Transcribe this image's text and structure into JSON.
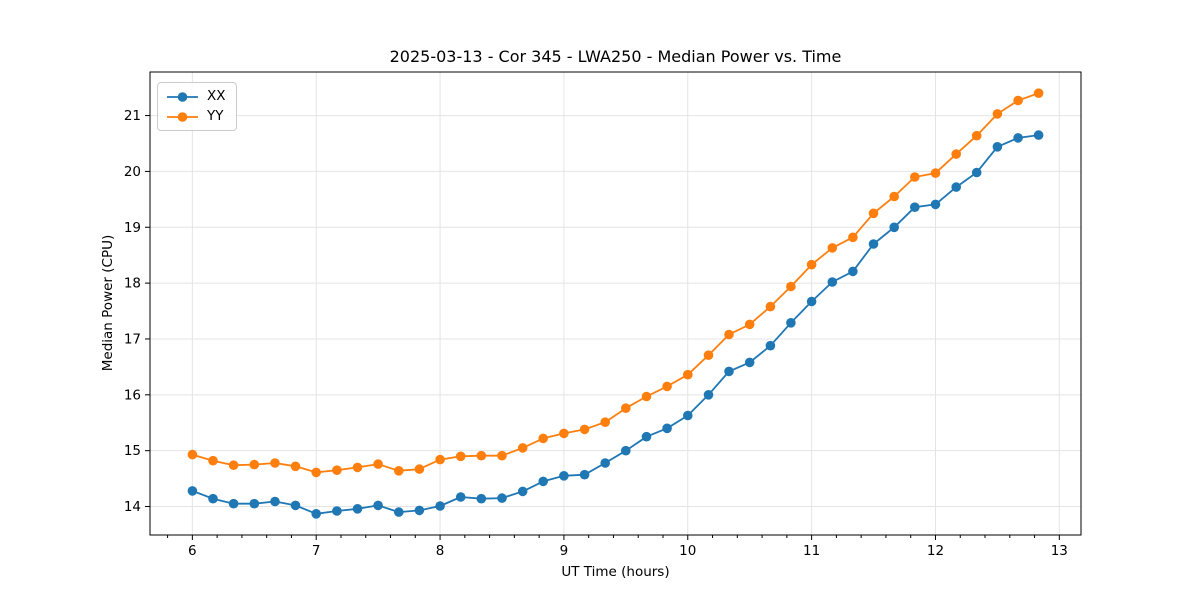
{
  "chart_data": {
    "type": "line",
    "title": "2025-03-13 - Cor 345 - LWA250 - Median Power vs. Time",
    "xlabel": "UT Time (hours)",
    "ylabel": "Median Power (CPU)",
    "grid": true,
    "legend_position": "upper-left",
    "xlim": [
      5.658,
      13.175
    ],
    "ylim": [
      13.49,
      21.78
    ],
    "x_ticks": [
      6,
      7,
      8,
      9,
      10,
      11,
      12,
      13
    ],
    "y_ticks": [
      14,
      15,
      16,
      17,
      18,
      19,
      20,
      21
    ],
    "x_minor_step": 0.2,
    "x": [
      6.0,
      6.167,
      6.333,
      6.5,
      6.667,
      6.833,
      7.0,
      7.167,
      7.333,
      7.5,
      7.667,
      7.833,
      8.0,
      8.167,
      8.333,
      8.5,
      8.667,
      8.833,
      9.0,
      9.167,
      9.333,
      9.5,
      9.667,
      9.833,
      10.0,
      10.167,
      10.333,
      10.5,
      10.667,
      10.833,
      11.0,
      11.167,
      11.333,
      11.5,
      11.667,
      11.833,
      12.0,
      12.167,
      12.333,
      12.5,
      12.667,
      12.833
    ],
    "series": [
      {
        "name": "XX",
        "color": "#1f77b4",
        "values": [
          14.28,
          14.14,
          14.05,
          14.05,
          14.09,
          14.02,
          13.87,
          13.92,
          13.96,
          14.02,
          13.9,
          13.93,
          14.01,
          14.17,
          14.14,
          14.15,
          14.27,
          14.45,
          14.55,
          14.57,
          14.78,
          15.0,
          15.25,
          15.4,
          15.63,
          16.0,
          16.42,
          16.58,
          16.88,
          17.29,
          17.67,
          18.02,
          18.21,
          18.7,
          19.0,
          19.36,
          19.41,
          19.72,
          19.98,
          20.44,
          20.6,
          20.65
        ]
      },
      {
        "name": "YY",
        "color": "#ff7f0e",
        "values": [
          14.93,
          14.82,
          14.74,
          14.75,
          14.78,
          14.72,
          14.61,
          14.65,
          14.7,
          14.76,
          14.64,
          14.67,
          14.84,
          14.9,
          14.91,
          14.91,
          15.05,
          15.22,
          15.31,
          15.38,
          15.51,
          15.76,
          15.97,
          16.15,
          16.36,
          16.71,
          17.08,
          17.26,
          17.58,
          17.94,
          18.33,
          18.63,
          18.82,
          19.25,
          19.55,
          19.9,
          19.97,
          20.31,
          20.64,
          21.03,
          21.27,
          21.4
        ]
      }
    ],
    "style": {
      "grid_color": "#e4e4e4",
      "frame_color": "#000000",
      "text_color": "#000000",
      "background": "#ffffff"
    }
  }
}
